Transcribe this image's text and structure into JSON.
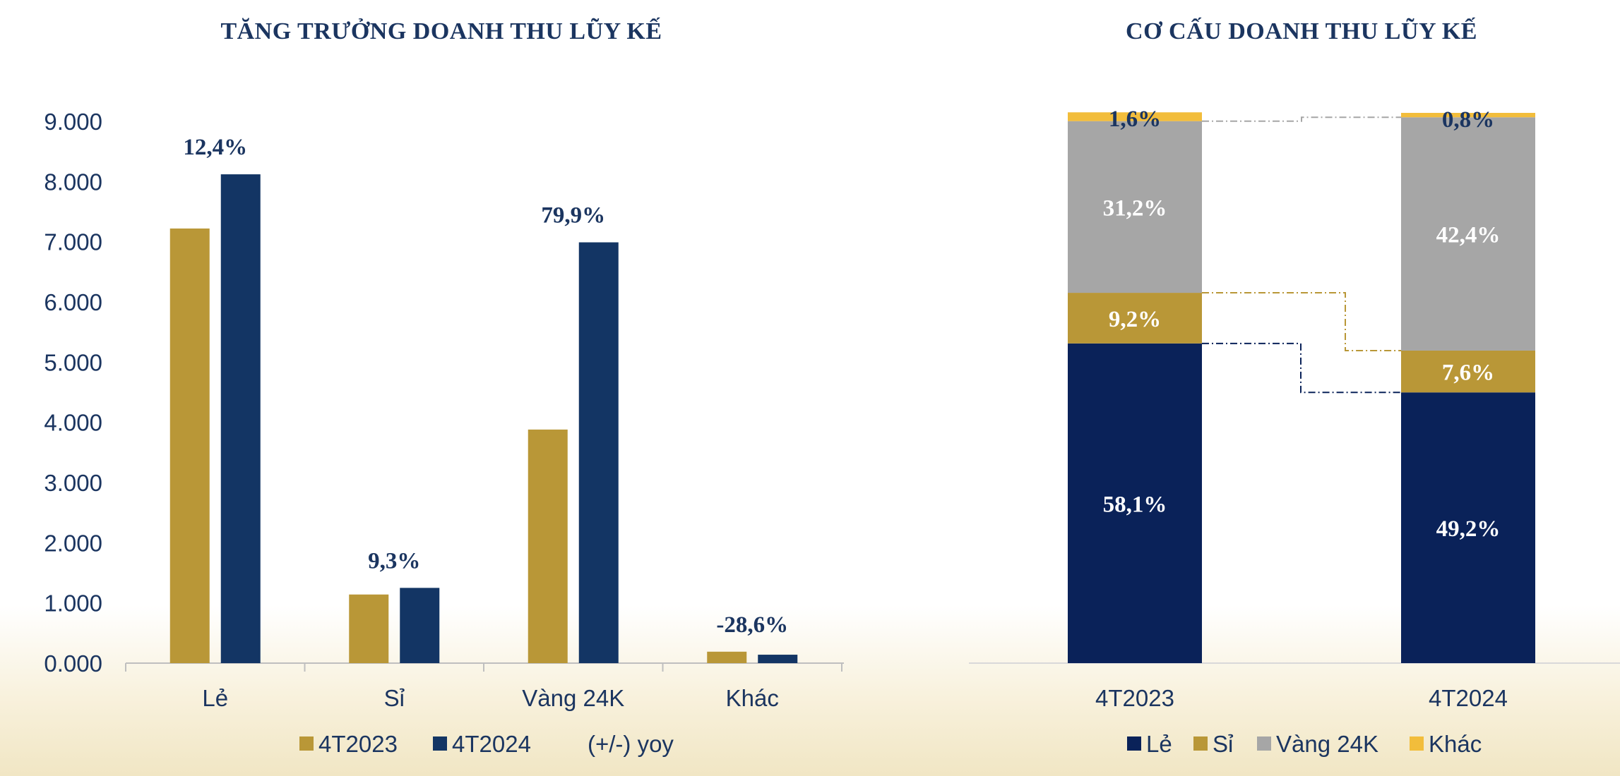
{
  "colors": {
    "gold": "#b99737",
    "navy": "#133564",
    "darknavy": "#0a2259",
    "gray": "#a6a6a6",
    "yellow": "#f2bd3b",
    "text": "#1b3560",
    "axis": "#bfbfbf"
  },
  "chart_data": [
    {
      "type": "bar",
      "title": "TĂNG TRƯỞNG DOANH THU LŨY KẾ",
      "categories": [
        "Lẻ",
        "Sỉ",
        "Vàng 24K",
        "Khác"
      ],
      "series": [
        {
          "name": "4T2023",
          "values": [
            7220,
            1140,
            3880,
            190
          ]
        },
        {
          "name": "4T2024",
          "values": [
            8120,
            1250,
            6990,
            140
          ]
        }
      ],
      "yoy_name": "(+/-) yoy",
      "yoy_labels": [
        "12,4%",
        "9,3%",
        "79,9%",
        "-28,6%"
      ],
      "ylim": [
        0,
        9000
      ],
      "yticks": [
        0,
        1000,
        2000,
        3000,
        4000,
        5000,
        6000,
        7000,
        8000,
        9000
      ],
      "ytick_labels": [
        "0.000",
        "1.000",
        "2.000",
        "3.000",
        "4.000",
        "5.000",
        "6.000",
        "7.000",
        "8.000",
        "9.000"
      ],
      "xlabel": "",
      "ylabel": "",
      "grid": false,
      "legend": "bottom"
    },
    {
      "type": "bar",
      "stacked": true,
      "percent": true,
      "title": "CƠ CẤU DOANH THU LŨY KẾ",
      "categories": [
        "4T2023",
        "4T2024"
      ],
      "series": [
        {
          "name": "Lẻ",
          "values": [
            58.1,
            49.2
          ],
          "labels": [
            "58,1%",
            "49,2%"
          ]
        },
        {
          "name": "Sỉ",
          "values": [
            9.2,
            7.6
          ],
          "labels": [
            "9,2%",
            "7,6%"
          ]
        },
        {
          "name": "Vàng 24K",
          "values": [
            31.2,
            42.4
          ],
          "labels": [
            "31,2%",
            "42,4%"
          ]
        },
        {
          "name": "Khác",
          "values": [
            1.6,
            0.8
          ],
          "labels": [
            "1,6%",
            "0,8%"
          ]
        }
      ],
      "xlabel": "",
      "ylabel": "",
      "grid": false,
      "legend": "bottom"
    }
  ]
}
